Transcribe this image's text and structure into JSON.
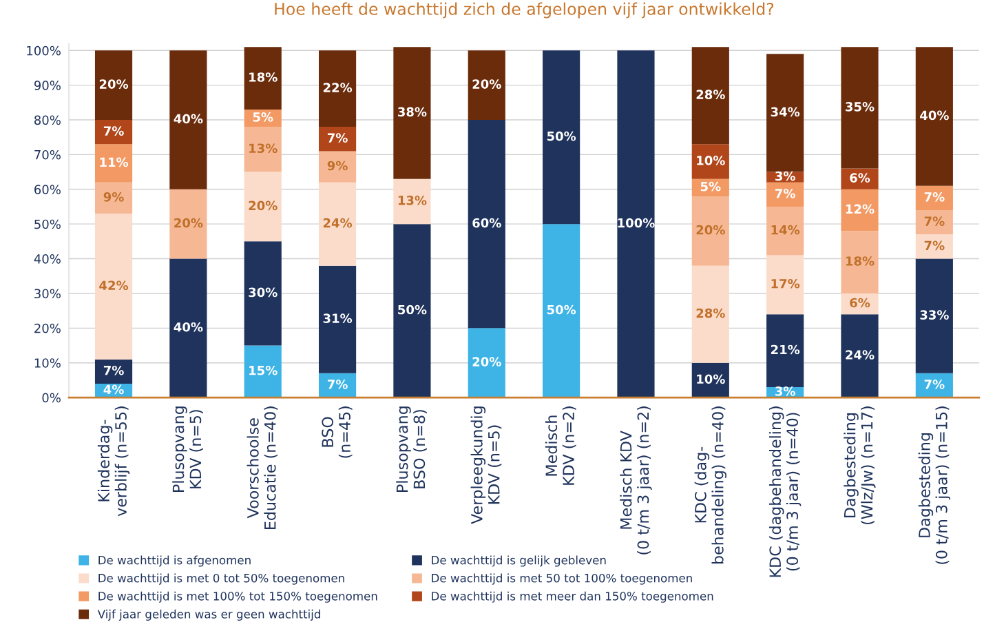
{
  "chart_data": {
    "type": "bar",
    "stacked": true,
    "title": "Hoe heeft de wachttijd zich de afgelopen vijf jaar ontwikkeld?",
    "categories": [
      "Kinderdag-\nverblijf (n=55)",
      "Plusopvang\nKDV (n=5)",
      "Voorschoolse\nEducatie (n=40)",
      "BSO\n(n=45)",
      "Plusopvang\nBSO (n=8)",
      "Verpleegkundig\nKDV (n=5)",
      "Medisch\nKDV (n=2)",
      "Medisch KDV\n(0 t/m 3 jaar) (n=2)",
      "KDC (dag-\nbehandeling) (n=40)",
      "KDC (dagbehandeling)\n(0 t/m 3 jaar) (n=40)",
      "Dagbesteding\n(Wlz/Jw) (n=17)",
      "Dagbesteding\n(0 t/m 3 jaar) (n=15)"
    ],
    "series": [
      {
        "name": "De wachttijd is afgenomen",
        "color": "#3db3e6",
        "values": [
          4,
          null,
          15,
          7,
          null,
          20,
          50,
          null,
          null,
          3,
          null,
          7
        ],
        "value_labels": [
          "4%",
          null,
          "15%",
          "7%",
          null,
          "20%",
          "50%",
          null,
          null,
          "3%",
          null,
          "7%"
        ]
      },
      {
        "name": "De wachttijd is gelijk gebleven",
        "color": "#1f335c",
        "values": [
          7,
          40,
          30,
          31,
          50,
          60,
          50,
          100,
          10,
          21,
          24,
          33
        ],
        "value_labels": [
          "7%",
          "40%",
          "30%",
          "31%",
          "50%",
          "60%",
          "50%",
          "100%",
          "10%",
          "21%",
          "24%",
          "33%"
        ]
      },
      {
        "name": "De wachttijd is met 0 tot 50% toegenomen",
        "color": "#fbdccb",
        "values": [
          42,
          null,
          20,
          24,
          13,
          null,
          null,
          null,
          28,
          17,
          6,
          7
        ],
        "value_labels": [
          "42%",
          null,
          "20%",
          "24%",
          "13%",
          null,
          null,
          null,
          "28%",
          "17%",
          "6%",
          "7%"
        ]
      },
      {
        "name": "De wachttijd is met 50 tot 100% toegenomen",
        "color": "#f6b894",
        "values": [
          9,
          20,
          13,
          9,
          null,
          null,
          null,
          null,
          20,
          14,
          18,
          7
        ],
        "value_labels": [
          "9%",
          "20%",
          "13%",
          "9%",
          null,
          null,
          null,
          null,
          "20%",
          "14%",
          "18%",
          "7%"
        ]
      },
      {
        "name": "De wachttijd is met 100% tot 150% toegenomen",
        "color": "#f39a64",
        "values": [
          11,
          null,
          5,
          null,
          null,
          null,
          null,
          null,
          5,
          7,
          12,
          7
        ],
        "value_labels": [
          "11%",
          null,
          "5%",
          null,
          null,
          null,
          null,
          null,
          "5%",
          "7%",
          "12%",
          "7%"
        ]
      },
      {
        "name": "De wachttijd is met meer dan 150% toegenomen",
        "color": "#b0461a",
        "values": [
          7,
          null,
          null,
          7,
          null,
          null,
          null,
          null,
          10,
          3,
          6,
          null
        ],
        "value_labels": [
          "7%",
          null,
          null,
          "7%",
          null,
          null,
          null,
          null,
          "10%",
          "3%",
          "6%",
          null
        ]
      },
      {
        "name": "Vijf jaar geleden was er geen wachttijd",
        "color": "#6b2c0c",
        "values": [
          20,
          40,
          18,
          22,
          38,
          20,
          null,
          null,
          28,
          34,
          35,
          40
        ],
        "value_labels": [
          "20%",
          "40%",
          "18%",
          "22%",
          "38%",
          "20%",
          null,
          null,
          "28%",
          "34%",
          "35%",
          "40%"
        ]
      }
    ],
    "ylim": [
      0,
      102
    ],
    "yticks": [
      {
        "value": 0,
        "label": "0%"
      },
      {
        "value": 10,
        "label": "10%"
      },
      {
        "value": 20,
        "label": "20%"
      },
      {
        "value": 30,
        "label": "30%"
      },
      {
        "value": 40,
        "label": "40%"
      },
      {
        "value": 50,
        "label": "50%"
      },
      {
        "value": 60,
        "label": "60%"
      },
      {
        "value": 70,
        "label": "70%"
      },
      {
        "value": 80,
        "label": "80%"
      },
      {
        "value": 90,
        "label": "90%"
      },
      {
        "value": 100,
        "label": "100%"
      }
    ],
    "grid": "y",
    "legend": "bottom"
  }
}
